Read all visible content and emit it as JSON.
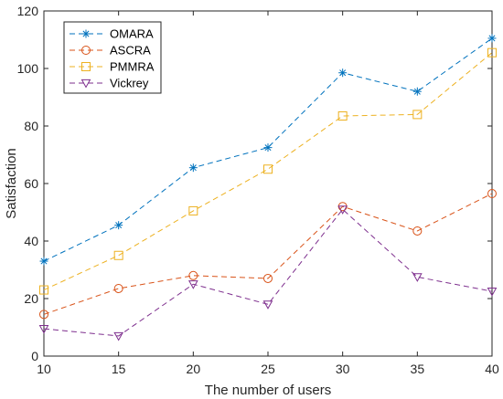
{
  "chart_data": {
    "type": "line",
    "title": "",
    "xlabel": "The number of users",
    "ylabel": "Satisfaction",
    "x": [
      10,
      15,
      20,
      25,
      30,
      35,
      40
    ],
    "xlim": [
      10,
      40
    ],
    "ylim": [
      0,
      120
    ],
    "xticks": [
      "10",
      "15",
      "20",
      "25",
      "30",
      "35",
      "40"
    ],
    "yticks": [
      "0",
      "20",
      "40",
      "60",
      "80",
      "100",
      "120"
    ],
    "grid": false,
    "legend_position": "top-left",
    "series": [
      {
        "name": "OMARA",
        "marker": "asterisk",
        "color": "#0072BD",
        "values": [
          33,
          45.5,
          65.5,
          72.5,
          98.5,
          92,
          110.5
        ]
      },
      {
        "name": "ASCRA",
        "marker": "circle",
        "color": "#D95319",
        "values": [
          14.5,
          23.5,
          28,
          27,
          52,
          43.5,
          56.5
        ]
      },
      {
        "name": "PMMRA",
        "marker": "square",
        "color": "#EDB120",
        "values": [
          23,
          35,
          50.5,
          65,
          83.5,
          84,
          105.5
        ]
      },
      {
        "name": "Vickrey",
        "marker": "triangle-down",
        "color": "#7E2F8E",
        "values": [
          9.5,
          7,
          25,
          18,
          51,
          27.5,
          22.5
        ]
      }
    ]
  }
}
